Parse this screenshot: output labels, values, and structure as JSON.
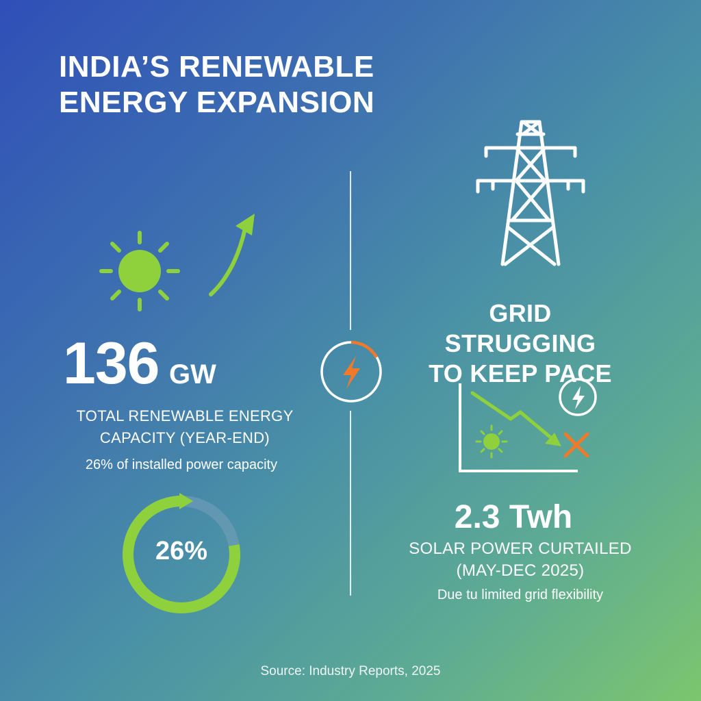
{
  "title": {
    "line1": "INDIA’S RENEWABLE",
    "line2": "ENERGY EXPANSION"
  },
  "left_panel": {
    "capacity_value": "136",
    "capacity_unit": "GW",
    "capacity_label_line1": "TOTAL RENEWABLE ENERGY",
    "capacity_label_line2": "CAPACITY (YEAR-END)",
    "capacity_note": "26% of installed power capacity",
    "share_percent_text": "26%",
    "share_percent_value": 26
  },
  "right_panel": {
    "heading_line1": "GRID STRUGGING",
    "heading_line2": "TO KEEP PACE",
    "curtailed_value": "2.3 Twh",
    "curtailed_label_line1": "SOLAR POWER CURTAILED",
    "curtailed_label_line2": "(MAY-DEC 2025)",
    "curtailed_note": "Due tu limited grid flexibility"
  },
  "footer": {
    "source": "Source: Industry Reports, 2025"
  },
  "icons": [
    "sun-icon",
    "up-arrow-icon",
    "transmission-tower-icon",
    "lightning-icon",
    "declining-chart-icon",
    "x-mark-icon"
  ],
  "colors": {
    "accent_green": "#8ed13c",
    "accent_orange": "#f07a2a",
    "text": "#ffffff"
  }
}
